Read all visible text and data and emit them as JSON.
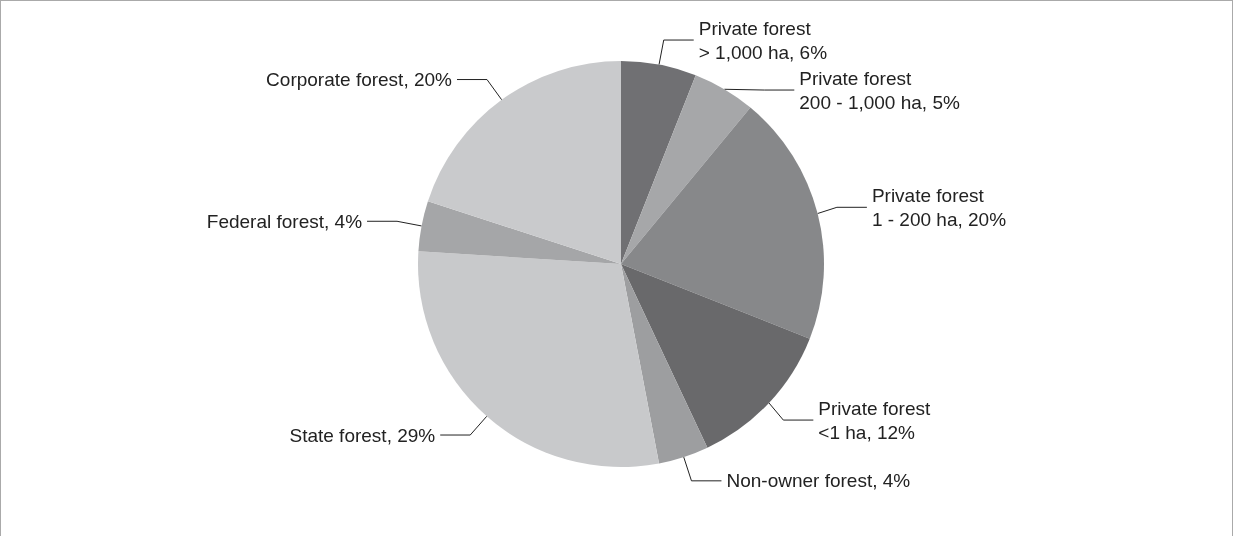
{
  "chart_data": {
    "type": "pie",
    "categories": [
      "Private forest\n> 1,000 ha",
      "Private forest\n200 - 1,000 ha",
      "Private forest\n1 - 200 ha",
      "Private forest\n<1 ha",
      "Non-owner forest",
      "State forest",
      "Federal forest",
      "Corporate forest"
    ],
    "value_labels": [
      "6%",
      "5%",
      "20%",
      "12%",
      "4%",
      "29%",
      "4%",
      "20%"
    ],
    "values": [
      6,
      5,
      20,
      12,
      4,
      29,
      4,
      20
    ],
    "colors": [
      "#707073",
      "#a6a7a9",
      "#87888a",
      "#69696b",
      "#9d9ea0",
      "#c8c9cb",
      "#a5a6a8",
      "#c9cacc"
    ],
    "legend": false
  }
}
